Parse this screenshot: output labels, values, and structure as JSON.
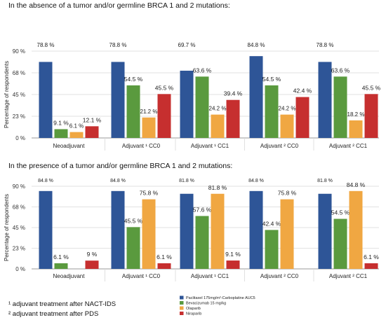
{
  "chart_data": [
    {
      "type": "bar",
      "title": "In the absence of a tumor and/or germline BRCA 1 and 2 mutations:",
      "ylabel": "Percentage of respondents",
      "ylim": [
        0,
        90
      ],
      "yticks": [
        "0 %",
        "23 %",
        "45 %",
        "68 %",
        "90 %"
      ],
      "categories": [
        "Neoadjuvant",
        "Adjuvant ¹ CC0",
        "Adjuvant ¹ CC1",
        "Adjuvant ² CC0",
        "Adjuvant ² CC1"
      ],
      "grid": true,
      "series": [
        {
          "name": "Paclitaxel 175mg/m²-Carboplatine AUC5",
          "color": "#2e5597",
          "values": [
            78.8,
            78.8,
            69.7,
            84.8,
            78.8
          ],
          "labels": [
            "78.8 %",
            "78.8 %",
            "69.7 %",
            "84.8 %",
            "78.8 %"
          ]
        },
        {
          "name": "Bevacizumab 15 mg/kg",
          "color": "#5a9a3e",
          "values": [
            9.1,
            54.5,
            63.6,
            54.5,
            63.6
          ],
          "labels": [
            "9.1 %",
            "54.5 %",
            "63.6 %",
            "54.5 %",
            "63.6 %"
          ]
        },
        {
          "name": "Olaparib",
          "color": "#f0a742",
          "values": [
            6.1,
            21.2,
            24.2,
            24.2,
            18.2
          ],
          "labels": [
            "6.1 %",
            "21.2 %",
            "24.2 %",
            "24.2 %",
            "18.2 %"
          ]
        },
        {
          "name": "Niraparib",
          "color": "#c62f2f",
          "values": [
            12.1,
            45.5,
            39.4,
            42.4,
            45.5
          ],
          "labels": [
            "12.1 %",
            "45.5 %",
            "39.4 %",
            "42.4 %",
            "45.5 %"
          ]
        }
      ]
    },
    {
      "type": "bar",
      "title": "In the presence of a tumor and/or germline BRCA 1 and 2 mutations:",
      "ylabel": "Percentage of respondents",
      "ylim": [
        0,
        90
      ],
      "yticks": [
        "0 %",
        "23 %",
        "45 %",
        "68 %",
        "90 %"
      ],
      "categories": [
        "Neoadjuvant",
        "Adjuvant ¹ CC0",
        "Adjuvant ¹ CC1",
        "Adjuvant ² CC0",
        "Adjuvant ² CC1"
      ],
      "grid": true,
      "series": [
        {
          "name": "Paclitaxel 175mg/m²-Carboplatine AUC5",
          "color": "#2e5597",
          "values": [
            84.8,
            84.8,
            81.8,
            84.8,
            81.8
          ],
          "labels": [
            "84.8 %",
            "84.8 %",
            "81.8 %",
            "84.8 %",
            "81.8 %"
          ]
        },
        {
          "name": "Bevacizumab 15 mg/kg",
          "color": "#5a9a3e",
          "values": [
            6.1,
            45.5,
            57.6,
            42.4,
            54.5
          ],
          "labels": [
            "6.1 %",
            "45.5 %",
            "57.6 %",
            "42.4 %",
            "54.5 %"
          ]
        },
        {
          "name": "Olaparib",
          "color": "#f0a742",
          "values": [
            0,
            75.8,
            81.8,
            75.8,
            84.8
          ],
          "labels": [
            "",
            "75.8 %",
            "81.8 %",
            "75.8 %",
            "84.8 %"
          ]
        },
        {
          "name": "Niraparib",
          "color": "#c62f2f",
          "values": [
            9,
            6.1,
            9.1,
            0,
            6.1
          ],
          "labels": [
            "9 %",
            "6.1 %",
            "9.1 %",
            "",
            "6.1 %"
          ]
        }
      ]
    }
  ],
  "footnotes": [
    "¹ adjuvant treatment after NACT-IDS",
    "² adjuvant treatment after PDS"
  ],
  "legend": [
    {
      "label": "Paclitaxel 175mg/m²-Carboplatine AUC5",
      "color": "#2e5597"
    },
    {
      "label": "Bevacizumab 15 mg/kg",
      "color": "#5a9a3e"
    },
    {
      "label": "Olaparib",
      "color": "#f0a742"
    },
    {
      "label": "Niraparib",
      "color": "#c62f2f"
    }
  ]
}
